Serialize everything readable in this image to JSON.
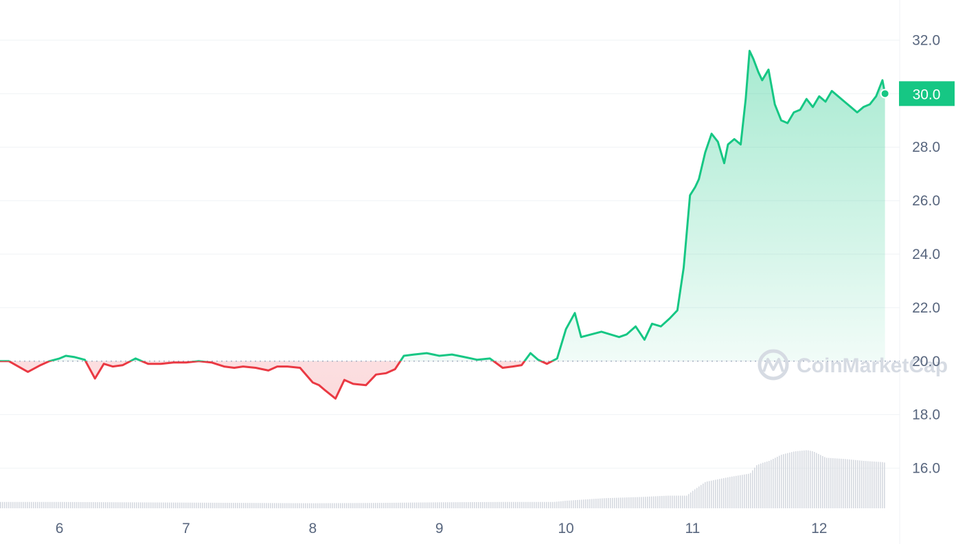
{
  "chart_data": {
    "type": "line",
    "y_axis": {
      "min": 14.5,
      "max": 33.5,
      "ticks": [
        "16.0",
        "18.0",
        "20.0",
        "22.0",
        "24.0",
        "26.0",
        "28.0",
        "30.0",
        "32.0"
      ]
    },
    "x_axis": {
      "min": 5.53,
      "max": 12.56,
      "ticks": [
        "6",
        "7",
        "8",
        "9",
        "10",
        "11",
        "12"
      ]
    },
    "baseline": 20.0,
    "current_price": {
      "value": 30.0,
      "label": "30.0"
    },
    "watermark": "CoinMarketCap",
    "colors": {
      "up": "#16c784",
      "down": "#ea3943",
      "grid": "#eff2f5",
      "tick_text": "#58667e",
      "volume": "#d5d9e0",
      "tag_bg": "#16c784"
    },
    "price": {
      "x": [
        5.53,
        5.6,
        5.75,
        5.85,
        5.92,
        6.0,
        6.05,
        6.12,
        6.2,
        6.28,
        6.35,
        6.42,
        6.5,
        6.6,
        6.7,
        6.8,
        6.9,
        7.0,
        7.1,
        7.2,
        7.3,
        7.38,
        7.45,
        7.55,
        7.65,
        7.72,
        7.8,
        7.9,
        8.0,
        8.05,
        8.1,
        8.18,
        8.25,
        8.32,
        8.42,
        8.5,
        8.58,
        8.65,
        8.72,
        8.8,
        8.9,
        9.0,
        9.1,
        9.2,
        9.3,
        9.4,
        9.5,
        9.58,
        9.65,
        9.72,
        9.78,
        9.85,
        9.93,
        10.0,
        10.07,
        10.12,
        10.2,
        10.28,
        10.35,
        10.42,
        10.48,
        10.55,
        10.62,
        10.68,
        10.75,
        10.82,
        10.88,
        10.93,
        10.98,
        11.02,
        11.05,
        11.1,
        11.15,
        11.2,
        11.25,
        11.28,
        11.33,
        11.38,
        11.42,
        11.45,
        11.48,
        11.52,
        11.55,
        11.6,
        11.65,
        11.7,
        11.75,
        11.8,
        11.85,
        11.9,
        11.95,
        12.0,
        12.05,
        12.1,
        12.15,
        12.2,
        12.25,
        12.3,
        12.35,
        12.4,
        12.45,
        12.5,
        12.52
      ],
      "y": [
        20.0,
        20.0,
        19.6,
        19.85,
        20.0,
        20.1,
        20.2,
        20.15,
        20.05,
        19.35,
        19.9,
        19.8,
        19.85,
        20.1,
        19.9,
        19.9,
        19.95,
        19.95,
        20.0,
        19.95,
        19.8,
        19.75,
        19.8,
        19.75,
        19.65,
        19.8,
        19.8,
        19.75,
        19.2,
        19.1,
        18.9,
        18.6,
        19.3,
        19.15,
        19.1,
        19.5,
        19.55,
        19.7,
        20.2,
        20.25,
        20.3,
        20.2,
        20.25,
        20.15,
        20.05,
        20.1,
        19.75,
        19.8,
        19.85,
        20.3,
        20.05,
        19.9,
        20.1,
        21.2,
        21.8,
        20.9,
        21.0,
        21.1,
        21.0,
        20.9,
        21.0,
        21.3,
        20.8,
        21.4,
        21.3,
        21.6,
        21.9,
        23.5,
        26.2,
        26.5,
        26.8,
        27.8,
        28.5,
        28.2,
        27.4,
        28.1,
        28.3,
        28.1,
        29.8,
        31.6,
        31.3,
        30.8,
        30.5,
        30.9,
        29.6,
        29.0,
        28.9,
        29.3,
        29.4,
        29.8,
        29.5,
        29.9,
        29.7,
        30.1,
        29.9,
        29.7,
        29.5,
        29.3,
        29.5,
        29.6,
        29.9,
        30.5,
        30.0
      ]
    },
    "volume": {
      "x": [
        5.53,
        6.0,
        6.5,
        7.0,
        7.5,
        8.0,
        8.5,
        9.0,
        9.5,
        9.9,
        10.0,
        10.3,
        10.6,
        10.8,
        10.95,
        11.0,
        11.05,
        11.1,
        11.2,
        11.3,
        11.45,
        11.5,
        11.55,
        11.6,
        11.7,
        11.8,
        11.9,
        11.95,
        12.0,
        12.05,
        12.2,
        12.35,
        12.5,
        12.52
      ],
      "y": [
        1.0,
        1.0,
        0.95,
        0.9,
        0.85,
        0.8,
        0.85,
        0.95,
        1.0,
        1.0,
        1.2,
        1.6,
        1.8,
        2.0,
        2.0,
        2.8,
        3.5,
        4.2,
        4.6,
        5.0,
        5.5,
        6.8,
        7.2,
        7.5,
        8.5,
        9.0,
        9.2,
        9.0,
        8.5,
        8.0,
        7.8,
        7.5,
        7.3,
        7.2
      ],
      "max": 12.5
    }
  }
}
